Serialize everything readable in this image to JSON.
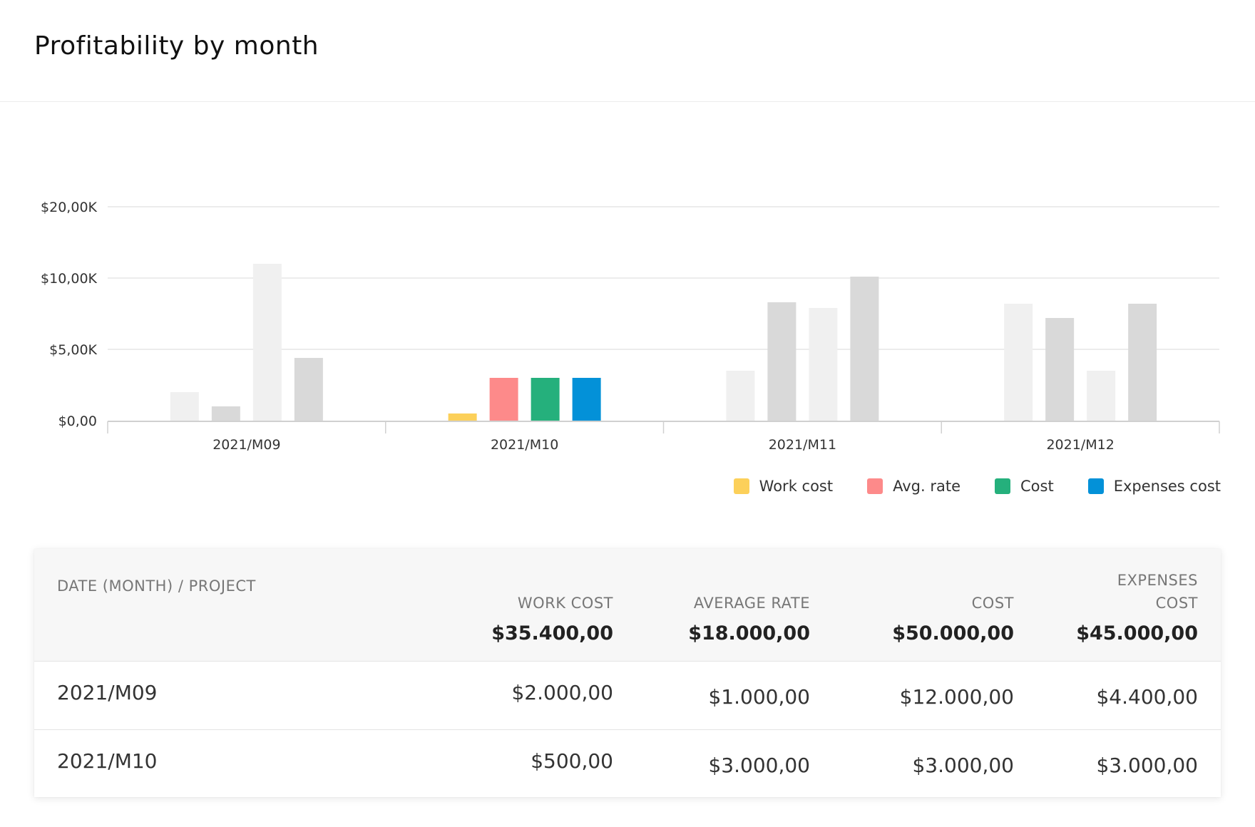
{
  "header": {
    "title": "Profitability by month"
  },
  "chart_data": {
    "type": "bar",
    "categories": [
      "2021/M09",
      "2021/M10",
      "2021/M11",
      "2021/M12"
    ],
    "y_ticks": [
      {
        "value": 0,
        "label": "$0,00"
      },
      {
        "value": 5000,
        "label": "$5,00K"
      },
      {
        "value": 10000,
        "label": "$10,00K"
      },
      {
        "value": 20000,
        "label": "$20,00K"
      }
    ],
    "ylim": [
      0,
      20000
    ],
    "highlighted_category": "2021/M10",
    "series": [
      {
        "name": "Work cost",
        "color": "#fcd05a",
        "values": [
          2000,
          500,
          3500,
          8200
        ]
      },
      {
        "name": "Avg. rate",
        "color": "#fd8a8a",
        "values": [
          1000,
          3000,
          8300,
          7200
        ]
      },
      {
        "name": "Cost",
        "color": "#25b07c",
        "values": [
          12000,
          3000,
          7900,
          3500
        ]
      },
      {
        "name": "Expenses cost",
        "color": "#0391d8",
        "values": [
          4400,
          3000,
          10200,
          8200
        ]
      }
    ],
    "muted_colors": [
      "#f0f0f0",
      "#d9d9d9"
    ],
    "grid": true,
    "legend_placement": "bottom-right"
  },
  "table": {
    "columns": {
      "project": "DATE (MONTH) / PROJECT",
      "work_cost": "WORK COST",
      "average_rate": "AVERAGE RATE",
      "cost": "COST",
      "expenses_cost_line1": "EXPENSES",
      "expenses_cost_line2": "COST"
    },
    "totals": {
      "work_cost": "$35.400,00",
      "average_rate": "$18.000,00",
      "cost": "$50.000,00",
      "expenses_cost": "$45.000,00"
    },
    "rows": [
      {
        "project": "2021/M09",
        "work_cost": "$2.000,00",
        "average_rate": "$1.000,00",
        "cost": "$12.000,00",
        "expenses_cost": "$4.400,00"
      },
      {
        "project": "2021/M10",
        "work_cost": "$500,00",
        "average_rate": "$3.000,00",
        "cost": "$3.000,00",
        "expenses_cost": "$3.000,00"
      }
    ]
  }
}
